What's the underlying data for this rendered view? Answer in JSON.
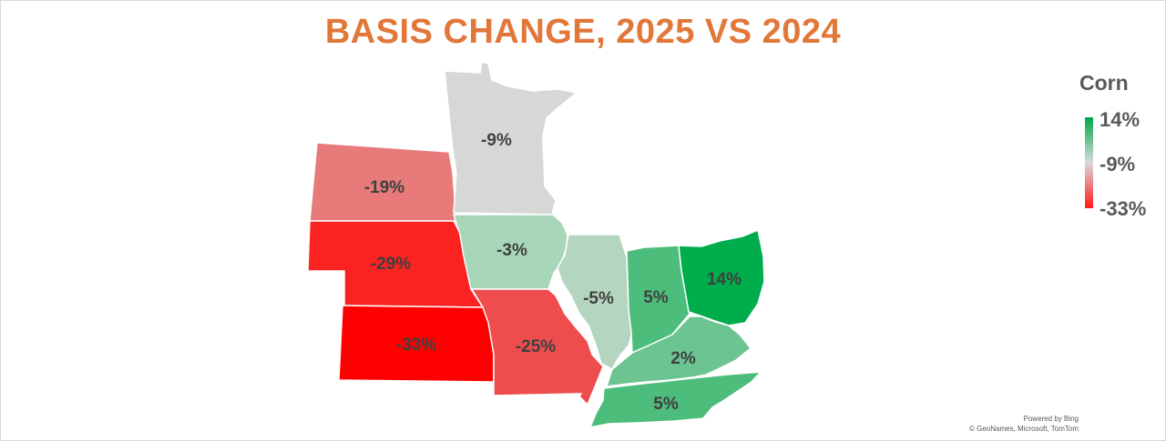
{
  "title": "BASIS CHANGE, 2025 VS 2024",
  "legend": {
    "title": "Corn",
    "max_label": "14%",
    "mid_label": "-9%",
    "min_label": "-33%",
    "colors": {
      "high": "#00a84a",
      "mid": "#d9d9d9",
      "low": "#ff1a1a"
    }
  },
  "regions": [
    {
      "id": "north-dakota",
      "label": "-19%",
      "value": -19,
      "color": "#E97A7A"
    },
    {
      "id": "minnesota",
      "label": "-9%",
      "value": -9,
      "color": "#D6D8D6"
    },
    {
      "id": "nebraska",
      "label": "-29%",
      "value": -29,
      "color": "#FB2222"
    },
    {
      "id": "iowa",
      "label": "-3%",
      "value": -3,
      "color": "#A8D6B8"
    },
    {
      "id": "illinois",
      "label": "-5%",
      "value": -5,
      "color": "#B4D5BF"
    },
    {
      "id": "indiana",
      "label": "5%",
      "value": 5,
      "color": "#4DBD7C"
    },
    {
      "id": "ohio",
      "label": "14%",
      "value": 14,
      "color": "#00AD4C"
    },
    {
      "id": "kansas",
      "label": "-33%",
      "value": -33,
      "color": "#FF0000"
    },
    {
      "id": "missouri",
      "label": "-25%",
      "value": -25,
      "color": "#EF4D4D"
    },
    {
      "id": "kentucky",
      "label": "2%",
      "value": 2,
      "color": "#6CC491"
    },
    {
      "id": "tennessee",
      "label": "5%",
      "value": 5,
      "color": "#4DBD7C"
    }
  ],
  "credits": {
    "line1": "Powered by Bing",
    "line2": "© GeoNames, Microsoft, TomTom"
  }
}
